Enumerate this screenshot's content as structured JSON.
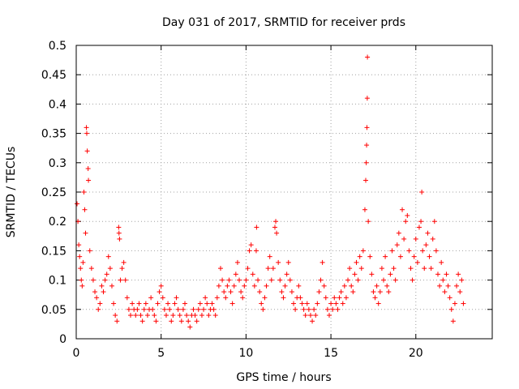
{
  "chart_data": {
    "type": "scatter",
    "title": "Day 031 of 2017, SRMTID for receiver prds",
    "xlabel": "GPS time / hours",
    "ylabel": "SRMTID / TECUs",
    "xlim": [
      0,
      24.5
    ],
    "ylim": [
      0,
      0.5
    ],
    "xticks": [
      0,
      5,
      10,
      15,
      20
    ],
    "xtick_labels": [
      "0",
      "5",
      "10",
      "15",
      "20"
    ],
    "yticks": [
      0,
      0.05,
      0.1,
      0.15,
      0.2,
      0.25,
      0.3,
      0.35,
      0.4,
      0.45,
      0.5
    ],
    "ytick_labels": [
      "0",
      "0.05",
      "0.1",
      "0.15",
      "0.2",
      "0.25",
      "0.3",
      "0.35",
      "0.4",
      "0.45",
      "0.5"
    ],
    "grid": true,
    "marker": "+",
    "series": [
      {
        "name": "SRMTID",
        "color": "#ff0000",
        "points": [
          [
            0.05,
            0.23
          ],
          [
            0.1,
            0.2
          ],
          [
            0.15,
            0.16
          ],
          [
            0.2,
            0.14
          ],
          [
            0.25,
            0.12
          ],
          [
            0.3,
            0.1
          ],
          [
            0.35,
            0.09
          ],
          [
            0.4,
            0.13
          ],
          [
            0.45,
            0.25
          ],
          [
            0.5,
            0.22
          ],
          [
            0.55,
            0.18
          ],
          [
            0.6,
            0.36
          ],
          [
            0.62,
            0.35
          ],
          [
            0.65,
            0.32
          ],
          [
            0.7,
            0.29
          ],
          [
            0.72,
            0.27
          ],
          [
            0.8,
            0.15
          ],
          [
            0.9,
            0.12
          ],
          [
            1.0,
            0.1
          ],
          [
            1.1,
            0.08
          ],
          [
            1.2,
            0.07
          ],
          [
            1.3,
            0.05
          ],
          [
            1.4,
            0.06
          ],
          [
            1.5,
            0.09
          ],
          [
            1.6,
            0.08
          ],
          [
            1.7,
            0.1
          ],
          [
            1.8,
            0.11
          ],
          [
            1.9,
            0.14
          ],
          [
            2.0,
            0.12
          ],
          [
            2.1,
            0.09
          ],
          [
            2.2,
            0.06
          ],
          [
            2.3,
            0.04
          ],
          [
            2.4,
            0.03
          ],
          [
            2.5,
            0.19
          ],
          [
            2.52,
            0.18
          ],
          [
            2.55,
            0.17
          ],
          [
            2.6,
            0.1
          ],
          [
            2.7,
            0.12
          ],
          [
            2.8,
            0.13
          ],
          [
            2.9,
            0.1
          ],
          [
            3.0,
            0.07
          ],
          [
            3.1,
            0.05
          ],
          [
            3.2,
            0.04
          ],
          [
            3.3,
            0.06
          ],
          [
            3.4,
            0.05
          ],
          [
            3.5,
            0.04
          ],
          [
            3.6,
            0.05
          ],
          [
            3.7,
            0.06
          ],
          [
            3.8,
            0.04
          ],
          [
            3.9,
            0.03
          ],
          [
            4.0,
            0.05
          ],
          [
            4.1,
            0.06
          ],
          [
            4.2,
            0.04
          ],
          [
            4.3,
            0.05
          ],
          [
            4.4,
            0.07
          ],
          [
            4.5,
            0.05
          ],
          [
            4.6,
            0.04
          ],
          [
            4.7,
            0.03
          ],
          [
            4.8,
            0.06
          ],
          [
            4.9,
            0.08
          ],
          [
            5.0,
            0.09
          ],
          [
            5.1,
            0.07
          ],
          [
            5.2,
            0.05
          ],
          [
            5.3,
            0.04
          ],
          [
            5.4,
            0.06
          ],
          [
            5.5,
            0.05
          ],
          [
            5.6,
            0.03
          ],
          [
            5.7,
            0.04
          ],
          [
            5.8,
            0.06
          ],
          [
            5.9,
            0.07
          ],
          [
            6.0,
            0.05
          ],
          [
            6.1,
            0.04
          ],
          [
            6.2,
            0.03
          ],
          [
            6.3,
            0.05
          ],
          [
            6.4,
            0.06
          ],
          [
            6.5,
            0.04
          ],
          [
            6.6,
            0.03
          ],
          [
            6.7,
            0.02
          ],
          [
            6.8,
            0.04
          ],
          [
            6.9,
            0.05
          ],
          [
            7.0,
            0.04
          ],
          [
            7.1,
            0.03
          ],
          [
            7.2,
            0.05
          ],
          [
            7.3,
            0.06
          ],
          [
            7.4,
            0.04
          ],
          [
            7.5,
            0.05
          ],
          [
            7.6,
            0.07
          ],
          [
            7.7,
            0.06
          ],
          [
            7.8,
            0.04
          ],
          [
            7.9,
            0.05
          ],
          [
            8.0,
            0.06
          ],
          [
            8.1,
            0.05
          ],
          [
            8.2,
            0.04
          ],
          [
            8.3,
            0.07
          ],
          [
            8.4,
            0.09
          ],
          [
            8.5,
            0.12
          ],
          [
            8.6,
            0.1
          ],
          [
            8.7,
            0.08
          ],
          [
            8.8,
            0.07
          ],
          [
            8.9,
            0.09
          ],
          [
            9.0,
            0.1
          ],
          [
            9.1,
            0.08
          ],
          [
            9.2,
            0.06
          ],
          [
            9.3,
            0.09
          ],
          [
            9.4,
            0.11
          ],
          [
            9.5,
            0.13
          ],
          [
            9.6,
            0.1
          ],
          [
            9.7,
            0.08
          ],
          [
            9.8,
            0.07
          ],
          [
            9.9,
            0.09
          ],
          [
            10.0,
            0.1
          ],
          [
            10.1,
            0.12
          ],
          [
            10.2,
            0.15
          ],
          [
            10.3,
            0.16
          ],
          [
            10.4,
            0.11
          ],
          [
            10.5,
            0.09
          ],
          [
            10.6,
            0.15
          ],
          [
            10.62,
            0.19
          ],
          [
            10.7,
            0.1
          ],
          [
            10.8,
            0.08
          ],
          [
            10.9,
            0.06
          ],
          [
            11.0,
            0.05
          ],
          [
            11.1,
            0.07
          ],
          [
            11.2,
            0.09
          ],
          [
            11.3,
            0.12
          ],
          [
            11.4,
            0.14
          ],
          [
            11.5,
            0.1
          ],
          [
            11.6,
            0.12
          ],
          [
            11.7,
            0.19
          ],
          [
            11.75,
            0.2
          ],
          [
            11.8,
            0.18
          ],
          [
            11.9,
            0.13
          ],
          [
            12.0,
            0.1
          ],
          [
            12.1,
            0.08
          ],
          [
            12.2,
            0.07
          ],
          [
            12.3,
            0.09
          ],
          [
            12.4,
            0.11
          ],
          [
            12.5,
            0.13
          ],
          [
            12.6,
            0.1
          ],
          [
            12.7,
            0.08
          ],
          [
            12.8,
            0.06
          ],
          [
            12.9,
            0.05
          ],
          [
            13.0,
            0.07
          ],
          [
            13.1,
            0.09
          ],
          [
            13.2,
            0.07
          ],
          [
            13.3,
            0.06
          ],
          [
            13.4,
            0.05
          ],
          [
            13.5,
            0.04
          ],
          [
            13.6,
            0.06
          ],
          [
            13.7,
            0.05
          ],
          [
            13.8,
            0.04
          ],
          [
            13.9,
            0.03
          ],
          [
            14.0,
            0.05
          ],
          [
            14.1,
            0.04
          ],
          [
            14.2,
            0.06
          ],
          [
            14.3,
            0.08
          ],
          [
            14.4,
            0.1
          ],
          [
            14.5,
            0.13
          ],
          [
            14.6,
            0.09
          ],
          [
            14.7,
            0.07
          ],
          [
            14.8,
            0.05
          ],
          [
            14.9,
            0.04
          ],
          [
            15.0,
            0.06
          ],
          [
            15.1,
            0.05
          ],
          [
            15.2,
            0.07
          ],
          [
            15.3,
            0.06
          ],
          [
            15.4,
            0.05
          ],
          [
            15.5,
            0.07
          ],
          [
            15.6,
            0.08
          ],
          [
            15.7,
            0.06
          ],
          [
            15.8,
            0.09
          ],
          [
            15.9,
            0.07
          ],
          [
            16.0,
            0.1
          ],
          [
            16.1,
            0.12
          ],
          [
            16.2,
            0.09
          ],
          [
            16.3,
            0.08
          ],
          [
            16.4,
            0.11
          ],
          [
            16.5,
            0.13
          ],
          [
            16.6,
            0.1
          ],
          [
            16.7,
            0.14
          ],
          [
            16.8,
            0.12
          ],
          [
            16.9,
            0.15
          ],
          [
            17.0,
            0.22
          ],
          [
            17.05,
            0.27
          ],
          [
            17.08,
            0.3
          ],
          [
            17.1,
            0.33
          ],
          [
            17.12,
            0.36
          ],
          [
            17.14,
            0.41
          ],
          [
            17.15,
            0.48
          ],
          [
            17.2,
            0.2
          ],
          [
            17.3,
            0.14
          ],
          [
            17.4,
            0.11
          ],
          [
            17.5,
            0.08
          ],
          [
            17.6,
            0.07
          ],
          [
            17.7,
            0.09
          ],
          [
            17.8,
            0.06
          ],
          [
            17.9,
            0.08
          ],
          [
            18.0,
            0.12
          ],
          [
            18.1,
            0.1
          ],
          [
            18.2,
            0.14
          ],
          [
            18.3,
            0.09
          ],
          [
            18.4,
            0.08
          ],
          [
            18.5,
            0.11
          ],
          [
            18.6,
            0.15
          ],
          [
            18.7,
            0.12
          ],
          [
            18.8,
            0.1
          ],
          [
            18.9,
            0.16
          ],
          [
            19.0,
            0.18
          ],
          [
            19.1,
            0.14
          ],
          [
            19.2,
            0.22
          ],
          [
            19.3,
            0.17
          ],
          [
            19.4,
            0.2
          ],
          [
            19.5,
            0.21
          ],
          [
            19.6,
            0.15
          ],
          [
            19.7,
            0.12
          ],
          [
            19.8,
            0.1
          ],
          [
            19.9,
            0.14
          ],
          [
            20.0,
            0.17
          ],
          [
            20.1,
            0.13
          ],
          [
            20.2,
            0.19
          ],
          [
            20.3,
            0.2
          ],
          [
            20.35,
            0.25
          ],
          [
            20.4,
            0.15
          ],
          [
            20.5,
            0.12
          ],
          [
            20.6,
            0.16
          ],
          [
            20.7,
            0.18
          ],
          [
            20.8,
            0.14
          ],
          [
            20.9,
            0.12
          ],
          [
            21.0,
            0.17
          ],
          [
            21.1,
            0.2
          ],
          [
            21.2,
            0.15
          ],
          [
            21.3,
            0.11
          ],
          [
            21.4,
            0.09
          ],
          [
            21.5,
            0.13
          ],
          [
            21.6,
            0.1
          ],
          [
            21.7,
            0.08
          ],
          [
            21.8,
            0.11
          ],
          [
            21.9,
            0.09
          ],
          [
            22.0,
            0.07
          ],
          [
            22.1,
            0.05
          ],
          [
            22.2,
            0.03
          ],
          [
            22.3,
            0.06
          ],
          [
            22.4,
            0.09
          ],
          [
            22.5,
            0.11
          ],
          [
            22.6,
            0.08
          ],
          [
            22.7,
            0.1
          ],
          [
            22.8,
            0.06
          ]
        ]
      }
    ]
  }
}
